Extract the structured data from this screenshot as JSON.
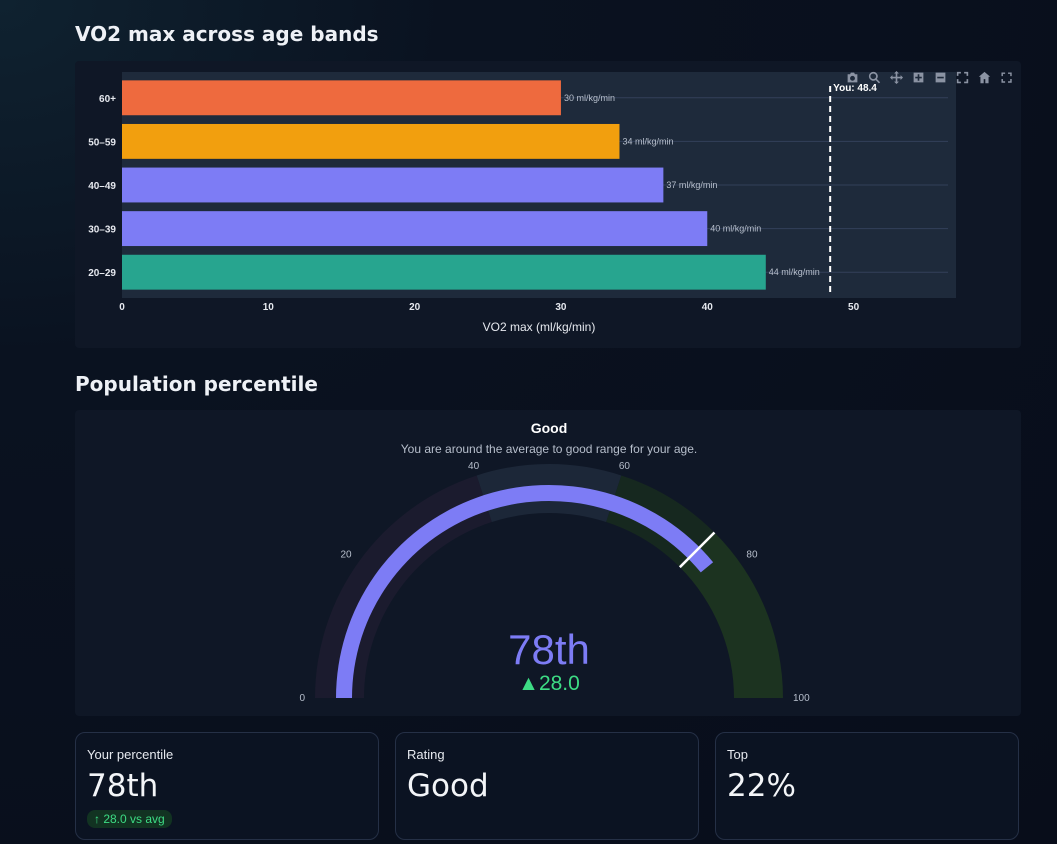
{
  "sections": {
    "chart_title": "VO2 max across age bands",
    "gauge_title": "Population percentile"
  },
  "chart_data": {
    "type": "bar",
    "orientation": "horizontal",
    "categories": [
      "60+",
      "50–59",
      "40–49",
      "30–39",
      "20–29"
    ],
    "values": [
      30,
      34,
      37,
      40,
      44
    ],
    "data_labels": [
      "30 ml/kg/min",
      "34 ml/kg/min",
      "37 ml/kg/min",
      "40 ml/kg/min",
      "44 ml/kg/min"
    ],
    "colors": [
      "#ee6a3e",
      "#f29f0e",
      "#7d7cf5",
      "#7d7cf5",
      "#27a58f"
    ],
    "xlabel": "VO2 max (ml/kg/min)",
    "xlim": [
      0,
      57
    ],
    "xticks": [
      0,
      10,
      20,
      30,
      40,
      50
    ],
    "grid": true,
    "reference_line": {
      "value": 48.4,
      "label": "You: 48.4",
      "style": "dashed",
      "color": "#ffffff"
    }
  },
  "modebar": {
    "icons": [
      "camera-icon",
      "zoom-icon",
      "pan-icon",
      "zoom-in-icon",
      "zoom-out-icon",
      "autoscale-icon",
      "home-icon",
      "fullscreen-icon"
    ]
  },
  "gauge": {
    "title": "Good",
    "subtitle": "You are around the average to good range for your age.",
    "value": 78,
    "value_text": "78th",
    "delta_text": "▲28.0",
    "range": [
      0,
      100
    ],
    "ticks": [
      "0",
      "20",
      "40",
      "60",
      "80",
      "100"
    ],
    "tick_values": [
      0,
      20,
      40,
      60,
      80,
      100
    ],
    "steps": [
      {
        "from": 0,
        "to": 40,
        "color": "#1b1b2e"
      },
      {
        "from": 40,
        "to": 60,
        "color": "#1c2738"
      },
      {
        "from": 60,
        "to": 75,
        "color": "#16281f"
      },
      {
        "from": 75,
        "to": 100,
        "color": "#1c3320"
      }
    ],
    "bar_color": "#7d7cf5",
    "threshold": 75,
    "value_color": "#7d7cf5",
    "delta_color": "#3ddc84"
  },
  "cards": [
    {
      "label": "Your percentile",
      "value": "78th",
      "badge": "↑ 28.0 vs avg"
    },
    {
      "label": "Rating",
      "value": "Good"
    },
    {
      "label": "Top",
      "value": "22%"
    }
  ]
}
